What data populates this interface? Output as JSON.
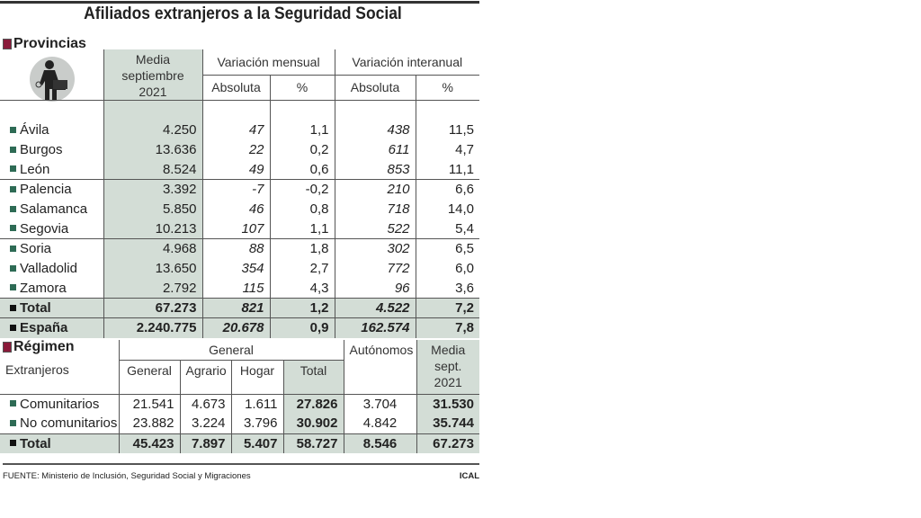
{
  "title": "Afiliados extranjeros a la Seguridad Social",
  "colors": {
    "shade": "#d3ddd6",
    "section_square": "#8a1a3a",
    "bullet": "#2e6b55"
  },
  "provincias": {
    "heading": "Provincias",
    "icon": "worker-with-toolbox-icon",
    "headers": {
      "media": "Media septiembre 2021",
      "mensual": "Variación mensual",
      "interanual": "Variación interanual",
      "absoluta": "Absoluta",
      "pct": "%"
    },
    "rows": [
      [
        "Ávila",
        "4.250",
        "47",
        "1,1",
        "438",
        "11,5"
      ],
      [
        "Burgos",
        "13.636",
        "22",
        "0,2",
        "611",
        "4,7"
      ],
      [
        "León",
        "8.524",
        "49",
        "0,6",
        "853",
        "11,1"
      ],
      [
        "Palencia",
        "3.392",
        "-7",
        "-0,2",
        "210",
        "6,6"
      ],
      [
        "Salamanca",
        "5.850",
        "46",
        "0,8",
        "718",
        "14,0"
      ],
      [
        "Segovia",
        "10.213",
        "107",
        "1,1",
        "522",
        "5,4"
      ],
      [
        "Soria",
        "4.968",
        "88",
        "1,8",
        "302",
        "6,5"
      ],
      [
        "Valladolid",
        "13.650",
        "354",
        "2,7",
        "772",
        "6,0"
      ],
      [
        "Zamora",
        "2.792",
        "115",
        "4,3",
        "96",
        "3,6"
      ]
    ],
    "totals": [
      [
        "Total",
        "67.273",
        "821",
        "1,2",
        "4.522",
        "7,2"
      ],
      [
        "España",
        "2.240.775",
        "20.678",
        "0,9",
        "162.574",
        "7,8"
      ]
    ]
  },
  "regimen": {
    "heading": "Régimen",
    "sublabel": "Extranjeros",
    "headers": {
      "general_group": "General",
      "general": "General",
      "agrario": "Agrario",
      "hogar": "Hogar",
      "total": "Total",
      "autonomos": "Autónomos",
      "media": "Media sept. 2021"
    },
    "rows": [
      [
        "Comunitarios",
        "21.541",
        "4.673",
        "1.611",
        "27.826",
        "3.704",
        "31.530"
      ],
      [
        "No comunitarios",
        "23.882",
        "3.224",
        "3.796",
        "30.902",
        "4.842",
        "35.744"
      ]
    ],
    "total": [
      "Total",
      "45.423",
      "7.897",
      "5.407",
      "58.727",
      "8.546",
      "67.273"
    ]
  },
  "footer": {
    "source": "FUENTE: Ministerio de Inclusión, Seguridad Social y Migraciones",
    "credit": "ICAL"
  }
}
